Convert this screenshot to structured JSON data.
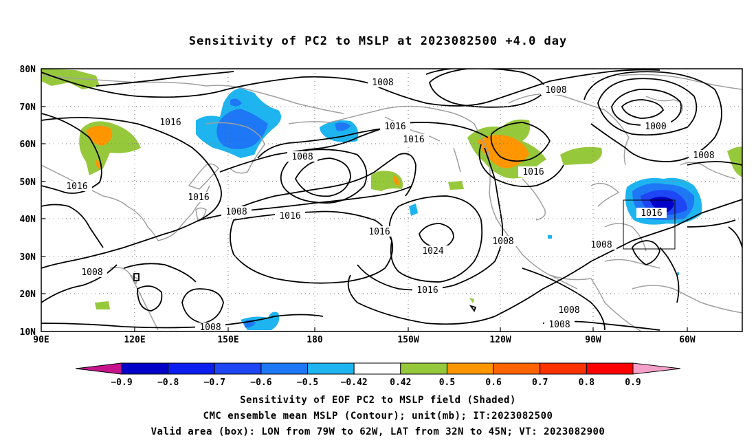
{
  "title": "Sensitivity of PC2 to MSLP at 2023082500 +4.0 day",
  "lat_labels": [
    "80N",
    "70N",
    "60N",
    "50N",
    "40N",
    "30N",
    "20N",
    "10N"
  ],
  "lon_labels": [
    "90E",
    "120E",
    "150E",
    "180",
    "150W",
    "120W",
    "90W",
    "60W"
  ],
  "contour_labels": [
    "1008",
    "1016",
    "1000",
    "1024",
    "1016",
    "1008",
    "1016",
    "1008",
    "1016",
    "1016",
    "1016",
    "1016",
    "1008",
    "1008",
    "1016",
    "1016",
    "1008",
    "1008",
    "1008",
    "1008",
    "1016",
    "1008",
    "1008",
    "1008"
  ],
  "colorbar": {
    "labels": [
      "-0.9",
      "-0.8",
      "-0.7",
      "-0.6",
      "-0.5",
      "-0.42",
      "0.42",
      "0.5",
      "0.6",
      "0.7",
      "0.8",
      "0.9"
    ],
    "colors": [
      "#0000c8",
      "#0a1ef0",
      "#1e46f5",
      "#1e78f5",
      "#1eb4f0",
      "#ffffff",
      "#96c83c",
      "#ff9600",
      "#ff6400",
      "#ff3200",
      "#ff0000"
    ],
    "low_end_color": "#c8148c",
    "high_end_color": "#f5a0c8"
  },
  "footer": {
    "line1": "Sensitivity of EOF PC2 to MSLP field (Shaded)",
    "line2": "CMC ensemble mean MSLP (Contour); unit(mb); IT:2023082500",
    "line3": "Valid area (box): LON from 79W to 62W, LAT from 32N to 45N; VT: 2023082900"
  }
}
